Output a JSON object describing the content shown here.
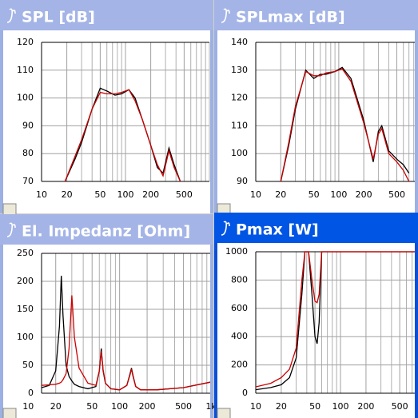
{
  "chart_data": [
    {
      "type": "line",
      "title": "SPL [dB]",
      "log_x": true,
      "grid": true,
      "minor_grid": true,
      "active": false,
      "xlim": [
        10,
        1000
      ],
      "xticks": [
        10,
        20,
        50,
        100,
        200,
        500
      ],
      "ylim": [
        70,
        120
      ],
      "yticks": [
        70,
        80,
        90,
        100,
        110,
        120
      ],
      "x": [
        19,
        25,
        30,
        40,
        50,
        60,
        75,
        90,
        110,
        130,
        160,
        200,
        240,
        280,
        330,
        380,
        450
      ],
      "series": [
        {
          "color": "#000000",
          "values": [
            70,
            78,
            84,
            96,
            103.5,
            102.5,
            101,
            101.5,
            103,
            100,
            92,
            83,
            75,
            73,
            82,
            76,
            70
          ]
        },
        {
          "color": "#cc0000",
          "values": [
            70,
            79,
            85,
            96,
            102,
            101.5,
            101.5,
            102,
            103,
            99,
            92,
            83,
            76,
            72,
            81,
            75,
            70
          ]
        }
      ]
    },
    {
      "type": "line",
      "title": "SPLmax [dB]",
      "log_x": true,
      "grid": true,
      "minor_grid": true,
      "active": false,
      "xlim": [
        10,
        900
      ],
      "xticks": [
        10,
        20,
        50,
        100,
        200,
        500
      ],
      "ylim": [
        90,
        140
      ],
      "yticks": [
        90,
        100,
        110,
        120,
        130,
        140
      ],
      "x": [
        20,
        25,
        30,
        40,
        50,
        60,
        70,
        90,
        110,
        140,
        200,
        260,
        300,
        330,
        400,
        500,
        600,
        700
      ],
      "series": [
        {
          "color": "#000000",
          "values": [
            90,
            103,
            116,
            130,
            127,
            128.5,
            128.5,
            129.5,
            131,
            127,
            112,
            97,
            108,
            110,
            101,
            98,
            96,
            93
          ]
        },
        {
          "color": "#cc0000",
          "values": [
            90,
            104,
            117,
            129.5,
            128,
            128,
            129,
            129.5,
            130.5,
            126,
            111,
            98,
            107,
            109,
            100,
            97,
            94,
            90
          ]
        }
      ]
    },
    {
      "type": "line",
      "title": "El. Impedanz [Ohm]",
      "log_x": true,
      "grid": true,
      "minor_grid": true,
      "active": false,
      "xlim": [
        14,
        1000
      ],
      "xticks": [
        10,
        20,
        50,
        100,
        200,
        500,
        {
          "value": 1000,
          "label": "1k"
        }
      ],
      "ylim": [
        0,
        250
      ],
      "yticks": [
        0,
        50,
        100,
        150,
        200,
        250
      ],
      "x": [
        14,
        17,
        20,
        22,
        23,
        24,
        26,
        28,
        30,
        32,
        36,
        45,
        55,
        60,
        63,
        66,
        70,
        80,
        100,
        120,
        130,
        135,
        140,
        150,
        170,
        250,
        500,
        1000
      ],
      "series": [
        {
          "color": "#000000",
          "values": [
            10,
            14,
            40,
            120,
            210,
            140,
            50,
            30,
            22,
            16,
            12,
            8,
            12,
            40,
            80,
            40,
            18,
            8,
            6,
            14,
            35,
            45,
            32,
            12,
            6,
            6,
            10,
            20
          ]
        },
        {
          "color": "#cc0000",
          "values": [
            14,
            15,
            16,
            18,
            20,
            24,
            35,
            80,
            175,
            100,
            45,
            18,
            14,
            40,
            75,
            42,
            18,
            8,
            6,
            14,
            33,
            43,
            30,
            12,
            6,
            6,
            10,
            20
          ]
        }
      ]
    },
    {
      "type": "line",
      "title": "Pmax [W]",
      "log_x": true,
      "grid": true,
      "minor_grid": true,
      "active": true,
      "xlim": [
        10,
        770
      ],
      "xticks": [
        10,
        20,
        50,
        100,
        200,
        500
      ],
      "ylim": [
        0,
        1000
      ],
      "yticks": [
        0,
        200,
        400,
        600,
        800,
        1000
      ],
      "x": [
        10,
        15,
        20,
        25,
        30,
        35,
        38,
        42,
        46,
        50,
        53,
        56,
        60,
        65,
        100,
        1000
      ],
      "series": [
        {
          "color": "#000000",
          "values": [
            25,
            40,
            60,
            110,
            250,
            700,
            1000,
            1000,
            700,
            400,
            350,
            500,
            1000,
            1000,
            1000,
            1000
          ]
        },
        {
          "color": "#cc0000",
          "values": [
            45,
            70,
            110,
            170,
            320,
            800,
            1000,
            1000,
            800,
            650,
            640,
            700,
            1000,
            1000,
            1000,
            1000
          ]
        }
      ]
    }
  ]
}
